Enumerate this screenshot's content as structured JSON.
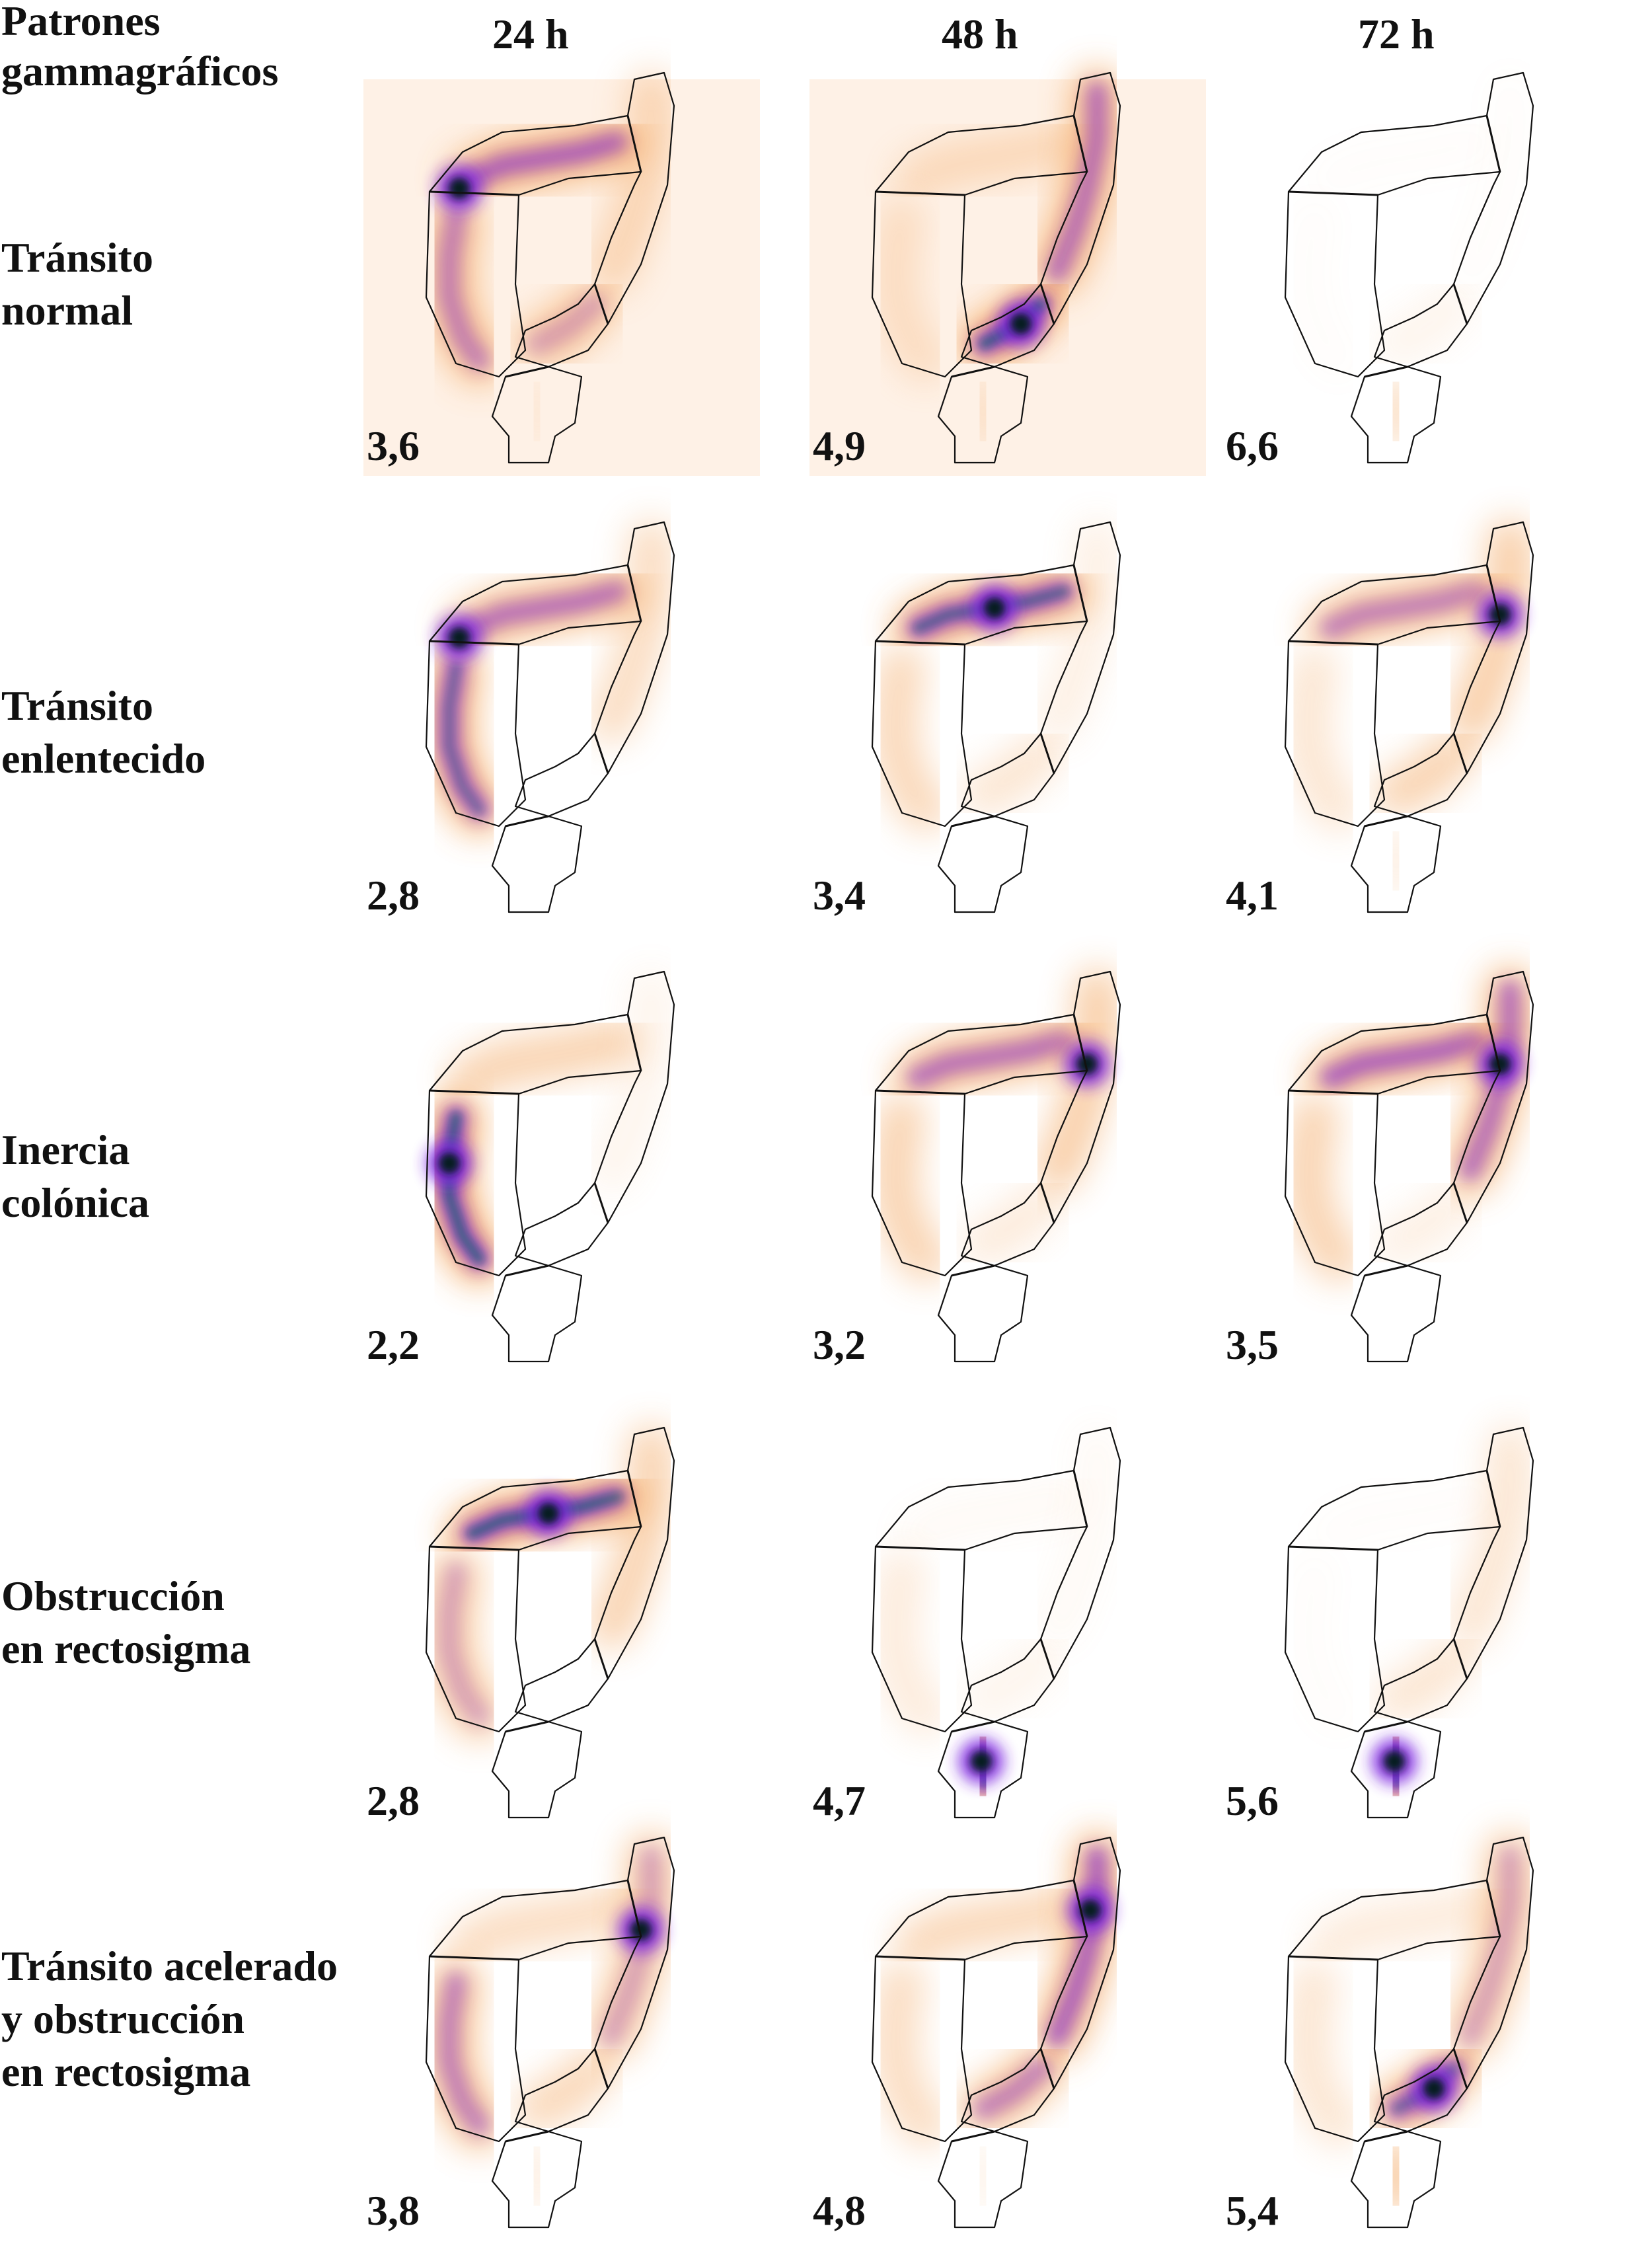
{
  "header": {
    "corner_title": "Patrones\ngammagráficos",
    "columns": [
      "24 h",
      "48 h",
      "72 h"
    ]
  },
  "rows": [
    {
      "label": "Tránsito\nnormal",
      "scores": [
        "3,6",
        "4,9",
        "6,6"
      ]
    },
    {
      "label": "Tránsito\nenlentecido",
      "scores": [
        "2,8",
        "3,4",
        "4,1"
      ]
    },
    {
      "label": "Inercia\ncolónica",
      "scores": [
        "2,2",
        "3,2",
        "3,5"
      ]
    },
    {
      "label": "Obstrucción\nen rectosigma",
      "scores": [
        "2,8",
        "4,7",
        "5,6"
      ]
    },
    {
      "label": "Tránsito acelerado\ny obstrucción\nen rectosigma",
      "scores": [
        "3,8",
        "4,8",
        "5,4"
      ]
    }
  ],
  "colors": {
    "outline": "#111111",
    "low": "#f29a4a",
    "mid": "#7a22e0",
    "high": "#0e6b66",
    "max": "#041a17"
  },
  "images": [
    [
      {
        "asc": 0.7,
        "tr": 0.8,
        "desc": 0.35,
        "sig": 0.6,
        "rec": 0.1,
        "hot": "hf"
      },
      {
        "asc": 0.25,
        "tr": 0.3,
        "desc": 0.75,
        "sig": 0.95,
        "rec": 0.2,
        "hot": "sig"
      },
      {
        "asc": 0.02,
        "tr": 0.02,
        "desc": 0.02,
        "sig": 0.1,
        "rec": 0.3,
        "hot": "none"
      }
    ],
    [
      {
        "asc": 0.85,
        "tr": 0.75,
        "desc": 0.35,
        "sig": 0.0,
        "rec": 0.0,
        "hot": "hf"
      },
      {
        "asc": 0.4,
        "tr": 0.9,
        "desc": 0.15,
        "sig": 0.25,
        "rec": 0.0,
        "hot": "tr"
      },
      {
        "asc": 0.25,
        "tr": 0.7,
        "desc": 0.5,
        "sig": 0.45,
        "rec": 0.15,
        "hot": "sf"
      }
    ],
    [
      {
        "asc": 0.95,
        "tr": 0.45,
        "desc": 0.1,
        "sig": 0.0,
        "rec": 0.0,
        "hot": "asc"
      },
      {
        "asc": 0.45,
        "tr": 0.75,
        "desc": 0.5,
        "sig": 0.2,
        "rec": 0.0,
        "hot": "sf"
      },
      {
        "asc": 0.45,
        "tr": 0.8,
        "desc": 0.75,
        "sig": 0.15,
        "rec": 0.0,
        "hot": "sf"
      }
    ],
    [
      {
        "asc": 0.6,
        "tr": 0.95,
        "desc": 0.45,
        "sig": 0.0,
        "rec": 0.0,
        "hot": "tr"
      },
      {
        "asc": 0.2,
        "tr": 0.05,
        "desc": 0.05,
        "sig": 0.1,
        "rec": 0.95,
        "hot": "rec"
      },
      {
        "asc": 0.02,
        "tr": 0.02,
        "desc": 0.25,
        "sig": 0.25,
        "rec": 0.95,
        "hot": "rec"
      }
    ],
    [
      {
        "asc": 0.7,
        "tr": 0.35,
        "desc": 0.6,
        "sig": 0.4,
        "rec": 0.15,
        "hot": "sf"
      },
      {
        "asc": 0.35,
        "tr": 0.4,
        "desc": 0.8,
        "sig": 0.7,
        "rec": 0.1,
        "hot": "desc"
      },
      {
        "asc": 0.25,
        "tr": 0.2,
        "desc": 0.6,
        "sig": 0.85,
        "rec": 0.5,
        "hot": "sig"
      }
    ]
  ]
}
